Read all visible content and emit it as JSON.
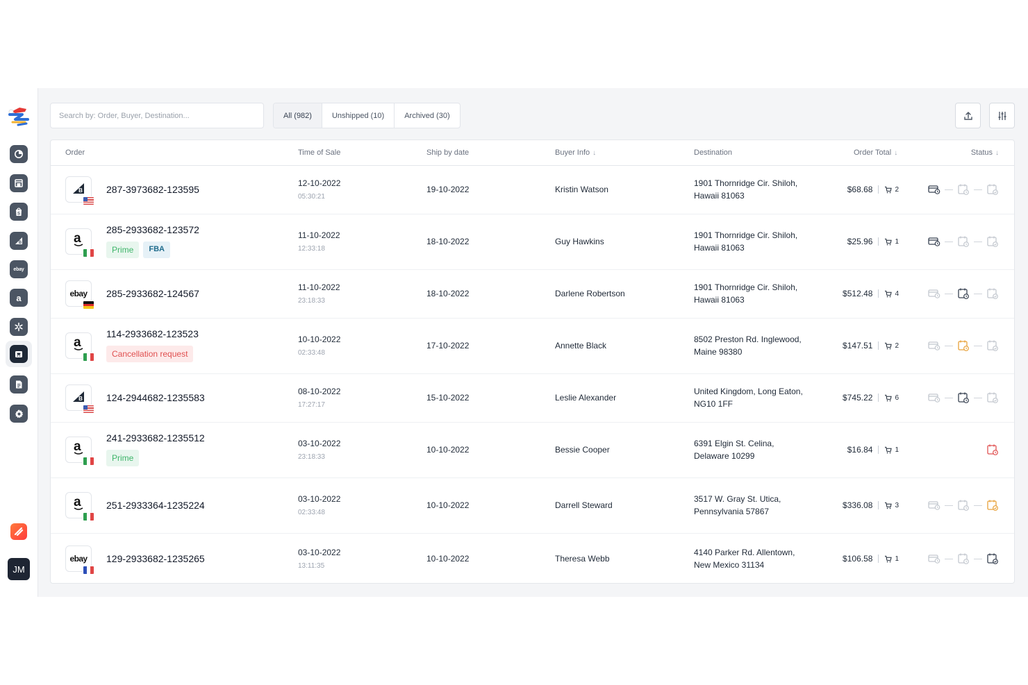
{
  "colors": {
    "sidebar_icon": "#4b5563",
    "active_nav": "#1f2937",
    "status_done": "#374151",
    "status_pending": "#c3c8cf",
    "status_warning": "#e8a13a",
    "status_error": "#e05050",
    "prime_text": "#3fb56a",
    "fba_text": "#1f6b8c",
    "cancel_text": "#e05050"
  },
  "sidebar": {
    "items": [
      {
        "icon": "dashboard-icon"
      },
      {
        "icon": "store-icon"
      },
      {
        "icon": "shopify-icon"
      },
      {
        "icon": "bigcommerce-icon"
      },
      {
        "icon": "ebay-icon",
        "text": "ebay"
      },
      {
        "icon": "amazon-icon",
        "text": "a"
      },
      {
        "icon": "walmart-icon"
      },
      {
        "icon": "orders-cart-icon",
        "active": true
      },
      {
        "icon": "document-icon"
      },
      {
        "icon": "gear-icon"
      }
    ],
    "avatar": "JM"
  },
  "toolbar": {
    "search_placeholder": "Search by: Order, Buyer, Destination...",
    "tabs": [
      {
        "label": "All (982)",
        "active": true
      },
      {
        "label": "Unshipped (10)"
      },
      {
        "label": "Archived (30)"
      }
    ],
    "export_icon": "upload-icon",
    "filter_icon": "sliders-icon"
  },
  "table": {
    "headers": {
      "order": "Order",
      "time_of_sale": "Time of Sale",
      "ship_by": "Ship by date",
      "buyer": "Buyer Info",
      "destination": "Destination",
      "total": "Order Total",
      "status": "Status"
    },
    "sort_arrow": "↓",
    "rows": [
      {
        "market": "bigcommerce",
        "flag": "us",
        "order_id": "287-3973682-123595",
        "badges": [],
        "date": "12-10-2022",
        "time": "05:30:21",
        "ship_by": "19-10-2022",
        "buyer": "Kristin Watson",
        "dest1": "1901 Thornridge Cir. Shiloh,",
        "dest2": "Hawaii 81063",
        "total": "$68.68",
        "qty": "2",
        "status": [
          "done",
          "pending",
          "pending"
        ]
      },
      {
        "market": "amazon",
        "flag": "it",
        "order_id": "285-2933682-123572",
        "badges": [
          {
            "type": "prime",
            "label": "Prime"
          },
          {
            "type": "fba",
            "label": "FBA"
          }
        ],
        "date": "11-10-2022",
        "time": "12:33:18",
        "ship_by": "18-10-2022",
        "buyer": "Guy Hawkins",
        "dest1": "1901 Thornridge Cir. Shiloh,",
        "dest2": "Hawaii 81063",
        "total": "$25.96",
        "qty": "1",
        "status": [
          "done",
          "pending",
          "pending"
        ]
      },
      {
        "market": "ebay",
        "flag": "de",
        "order_id": "285-2933682-124567",
        "badges": [],
        "date": "11-10-2022",
        "time": "23:18:33",
        "ship_by": "18-10-2022",
        "buyer": "Darlene Robertson",
        "dest1": "1901 Thornridge Cir. Shiloh,",
        "dest2": "Hawaii 81063",
        "total": "$512.48",
        "qty": "4",
        "status": [
          "pending",
          "done",
          "pending"
        ]
      },
      {
        "market": "amazon",
        "flag": "it",
        "order_id": "114-2933682-123523",
        "badges": [
          {
            "type": "cancel",
            "label": "Cancellation request"
          }
        ],
        "date": "10-10-2022",
        "time": "02:33:48",
        "ship_by": "17-10-2022",
        "buyer": "Annette Black",
        "dest1": "8502 Preston Rd. Inglewood,",
        "dest2": "Maine 98380",
        "total": "$147.51",
        "qty": "2",
        "status": [
          "pending",
          "warning",
          "pending"
        ]
      },
      {
        "market": "bigcommerce",
        "flag": "us",
        "order_id": "124-2944682-1235583",
        "badges": [],
        "date": "08-10-2022",
        "time": "17:27:17",
        "ship_by": "15-10-2022",
        "buyer": "Leslie Alexander",
        "dest1": "United Kingdom, Long Eaton,",
        "dest2": "NG10 1FF",
        "total": "$745.22",
        "qty": "6",
        "status": [
          "pending",
          "done",
          "pending"
        ]
      },
      {
        "market": "amazon",
        "flag": "it",
        "order_id": "241-2933682-1235512",
        "badges": [
          {
            "type": "prime",
            "label": "Prime"
          }
        ],
        "date": "03-10-2022",
        "time": "23:18:33",
        "ship_by": "10-10-2022",
        "buyer": "Bessie Cooper",
        "dest1": "6391 Elgin St. Celina,",
        "dest2": "Delaware 10299",
        "total": "$16.84",
        "qty": "1",
        "status": [
          "error"
        ]
      },
      {
        "market": "amazon",
        "flag": "it",
        "order_id": "251-2933364-1235224",
        "badges": [],
        "date": "03-10-2022",
        "time": "02:33:48",
        "ship_by": "10-10-2022",
        "buyer": "Darrell Steward",
        "dest1": "3517 W. Gray St. Utica,",
        "dest2": "Pennsylvania 57867",
        "total": "$336.08",
        "qty": "3",
        "status": [
          "pending",
          "pending",
          "warning"
        ]
      },
      {
        "market": "ebay",
        "flag": "fr",
        "order_id": "129-2933682-1235265",
        "badges": [],
        "date": "03-10-2022",
        "time": "13:11:35",
        "ship_by": "10-10-2022",
        "buyer": "Theresa Webb",
        "dest1": "4140 Parker Rd. Allentown,",
        "dest2": "New Mexico 31134",
        "total": "$106.58",
        "qty": "1",
        "status": [
          "pending",
          "pending",
          "done"
        ]
      }
    ]
  }
}
